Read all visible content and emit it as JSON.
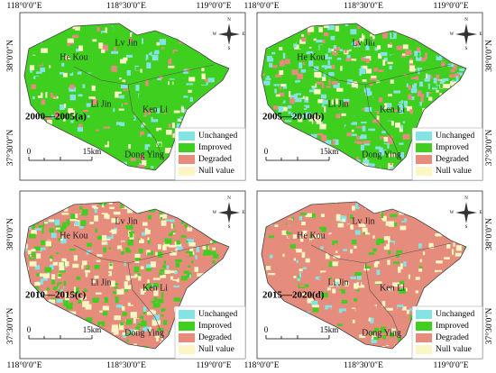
{
  "panels": [
    {
      "label": "2000—2005(a)"
    },
    {
      "label": "2005—2010(b)"
    },
    {
      "label": "2010—2015(c)"
    },
    {
      "label": "2015—2020(d)"
    }
  ],
  "places": [
    "Lv Jin",
    "He Kou",
    "Li Jin",
    "Ken Li",
    "Dong Ying"
  ],
  "legend": [
    {
      "label": "Unchanged",
      "color": "#86e3e3"
    },
    {
      "label": "Improved",
      "color": "#3fcf1f"
    },
    {
      "label": "Degraded",
      "color": "#e58c7c"
    },
    {
      "label": "Null value",
      "color": "#fbf6c4"
    }
  ],
  "axes": {
    "lon": [
      "118°0′0″E",
      "118°30′0″E",
      "119°0′0″E"
    ],
    "lat": [
      "38°0′0″N",
      "37°30′0″N"
    ]
  },
  "scale": {
    "zero": "0",
    "length": "15km"
  },
  "compass": {
    "n": "N",
    "e": "E",
    "s": "S",
    "w": "W"
  }
}
